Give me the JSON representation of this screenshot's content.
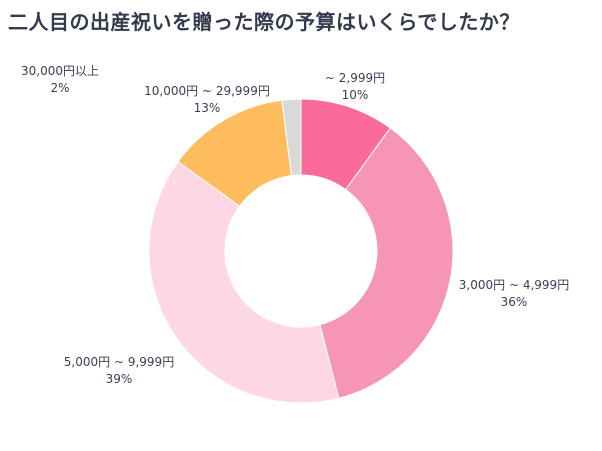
{
  "chart_data": {
    "type": "pie",
    "title": "二人目の出産祝いを贈った際の予算はいくらでしたか？",
    "slices": [
      {
        "label": "~ 2,999円",
        "value": 10,
        "value_label": "10%",
        "color": "#f96b98"
      },
      {
        "label": "3,000円 ~ 4,999円",
        "value": 36,
        "value_label": "36%",
        "color": "#f795b4"
      },
      {
        "label": "5,000円 ~ 9,999円",
        "value": 39,
        "value_label": "39%",
        "color": "#fdd7e3"
      },
      {
        "label": "10,000円 ~ 29,999円",
        "value": 13,
        "value_label": "13%",
        "color": "#fdbd5d"
      },
      {
        "label": "30,000円以上",
        "value": 2,
        "value_label": "2%",
        "color": "#d9d9d9"
      }
    ]
  }
}
